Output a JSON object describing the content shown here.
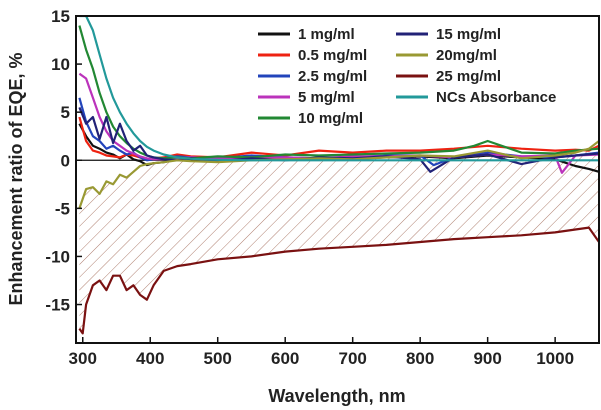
{
  "chart_data": {
    "type": "line",
    "xlabel": "Wavelength, nm",
    "ylabel": "Enhancement ratio of EQE, %",
    "xlim": [
      290,
      1065
    ],
    "ylim": [
      -19,
      15
    ],
    "x_ticks": [
      300,
      400,
      500,
      600,
      700,
      800,
      900,
      1000
    ],
    "y_ticks": [
      -15,
      -10,
      -5,
      0,
      5,
      10,
      15
    ],
    "grid": false,
    "legend_position": "top-right, two columns",
    "zero_line": true,
    "hatched_region": "between the 20mg/ml curve and the 25 mg/ml curve",
    "series": [
      {
        "name": "1 mg/ml",
        "color": "#111111",
        "x": [
          295,
          305,
          315,
          325,
          335,
          345,
          355,
          365,
          375,
          385,
          395,
          405,
          420,
          440,
          460,
          500,
          550,
          600,
          650,
          700,
          750,
          800,
          850,
          900,
          950,
          1000,
          1030,
          1050,
          1065
        ],
        "y": [
          3.8,
          2.5,
          1.5,
          1.2,
          0.8,
          0.6,
          0.2,
          0.6,
          0.1,
          -0.1,
          -0.5,
          -0.3,
          -0.2,
          0.1,
          0.0,
          0.2,
          0.1,
          0.3,
          0.1,
          0.2,
          0.3,
          0.4,
          0.2,
          0.5,
          0.3,
          0.1,
          -0.6,
          -0.9,
          -1.2
        ]
      },
      {
        "name": "0.5 mg/ml",
        "color": "#ee2211",
        "x": [
          295,
          305,
          315,
          325,
          335,
          345,
          355,
          365,
          375,
          385,
          395,
          405,
          420,
          440,
          460,
          500,
          550,
          600,
          650,
          700,
          750,
          800,
          850,
          900,
          950,
          1000,
          1030,
          1050,
          1065
        ],
        "y": [
          4.5,
          2.0,
          1.0,
          0.8,
          0.5,
          0.4,
          0.3,
          0.6,
          0.5,
          0.3,
          0.1,
          0.2,
          0.3,
          0.6,
          0.4,
          0.3,
          0.8,
          0.5,
          1.0,
          0.8,
          1.0,
          1.0,
          1.2,
          1.5,
          1.2,
          1.0,
          1.1,
          1.0,
          1.5
        ]
      },
      {
        "name": "2.5 mg/ml",
        "color": "#2244bb",
        "x": [
          295,
          305,
          315,
          325,
          335,
          345,
          355,
          365,
          375,
          385,
          395,
          405,
          420,
          440,
          460,
          500,
          550,
          600,
          650,
          700,
          750,
          800,
          820,
          850,
          900,
          950,
          1000,
          1030,
          1065
        ],
        "y": [
          6.5,
          4.0,
          2.5,
          2.0,
          1.2,
          1.5,
          1.0,
          0.6,
          0.8,
          0.3,
          0.0,
          0.1,
          0.2,
          0.4,
          0.3,
          0.2,
          0.5,
          0.3,
          0.2,
          0.3,
          0.5,
          0.5,
          -0.5,
          0.3,
          0.8,
          0.4,
          0.3,
          0.5,
          0.8
        ]
      },
      {
        "name": "5 mg/ml",
        "color": "#bb33bb",
        "x": [
          295,
          305,
          315,
          325,
          335,
          345,
          355,
          365,
          375,
          385,
          395,
          405,
          420,
          440,
          460,
          500,
          550,
          600,
          650,
          700,
          750,
          800,
          850,
          900,
          950,
          1000,
          1010,
          1030,
          1065
        ],
        "y": [
          9.0,
          8.5,
          6.5,
          4.5,
          3.0,
          2.0,
          1.5,
          1.0,
          0.7,
          0.4,
          0.2,
          0.1,
          0.1,
          0.2,
          0.3,
          0.2,
          0.3,
          0.3,
          0.2,
          0.4,
          0.4,
          0.5,
          0.3,
          0.6,
          0.4,
          0.5,
          -1.3,
          0.5,
          0.6
        ]
      },
      {
        "name": "10 mg/ml",
        "color": "#228833",
        "x": [
          295,
          305,
          315,
          325,
          335,
          345,
          355,
          365,
          375,
          385,
          395,
          405,
          420,
          440,
          460,
          500,
          550,
          600,
          650,
          700,
          750,
          800,
          850,
          880,
          900,
          950,
          1000,
          1030,
          1065
        ],
        "y": [
          14.0,
          11.5,
          9.5,
          7.0,
          5.0,
          3.5,
          2.5,
          1.8,
          1.2,
          0.8,
          0.5,
          0.3,
          0.2,
          0.3,
          0.2,
          0.4,
          0.3,
          0.6,
          0.5,
          0.6,
          0.7,
          0.8,
          1.0,
          1.5,
          2.0,
          0.8,
          0.7,
          1.0,
          1.2
        ]
      },
      {
        "name": "15 mg/ml",
        "color": "#222277",
        "x": [
          295,
          305,
          315,
          325,
          335,
          345,
          355,
          365,
          375,
          385,
          395,
          405,
          420,
          440,
          460,
          500,
          550,
          600,
          650,
          700,
          750,
          800,
          815,
          850,
          900,
          950,
          1000,
          1030,
          1065
        ],
        "y": [
          5.5,
          3.8,
          4.5,
          2.2,
          4.5,
          1.8,
          3.8,
          2.0,
          1.0,
          1.5,
          0.5,
          0.3,
          0.1,
          0.0,
          0.2,
          -0.1,
          0.2,
          0.0,
          0.3,
          0.2,
          0.4,
          0.1,
          -1.2,
          0.3,
          0.6,
          -0.4,
          0.3,
          0.5,
          0.7
        ]
      },
      {
        "name": "20mg/ml",
        "color": "#999933",
        "x": [
          295,
          305,
          315,
          325,
          335,
          345,
          355,
          365,
          375,
          385,
          395,
          405,
          420,
          440,
          460,
          500,
          550,
          600,
          650,
          700,
          750,
          800,
          850,
          900,
          950,
          1000,
          1030,
          1050,
          1065
        ],
        "y": [
          -5.0,
          -3.0,
          -2.8,
          -3.5,
          -2.2,
          -2.5,
          -1.5,
          -1.8,
          -1.2,
          -0.6,
          -0.4,
          -0.3,
          -0.2,
          0.0,
          -0.1,
          -0.2,
          0.0,
          0.1,
          0.2,
          0.1,
          0.3,
          0.5,
          0.4,
          1.0,
          0.2,
          0.5,
          0.8,
          1.2,
          2.0
        ]
      },
      {
        "name": "25 mg/ml",
        "color": "#7a1111",
        "x": [
          295,
          300,
          305,
          315,
          325,
          335,
          345,
          355,
          365,
          375,
          385,
          395,
          405,
          420,
          440,
          460,
          500,
          550,
          600,
          650,
          700,
          750,
          800,
          850,
          900,
          950,
          1000,
          1030,
          1050,
          1065
        ],
        "y": [
          -17.5,
          -18.0,
          -15.0,
          -13.0,
          -12.5,
          -13.5,
          -12.0,
          -12.0,
          -13.5,
          -13.0,
          -14.0,
          -14.5,
          -13.0,
          -11.5,
          -11.0,
          -10.8,
          -10.3,
          -10.0,
          -9.5,
          -9.2,
          -9.0,
          -8.8,
          -8.5,
          -8.2,
          -8.0,
          -7.8,
          -7.5,
          -7.2,
          -7.0,
          -8.5
        ]
      },
      {
        "name": "NCs Absorbance",
        "color": "#22999a",
        "x": [
          295,
          305,
          315,
          325,
          335,
          345,
          355,
          365,
          375,
          385,
          395,
          405,
          420,
          440,
          460,
          500,
          550,
          600,
          650,
          700,
          750,
          800,
          850,
          900,
          950,
          1000,
          1065
        ],
        "y": [
          15.0,
          15.0,
          13.5,
          11.0,
          8.5,
          6.5,
          5.0,
          3.8,
          2.8,
          2.0,
          1.4,
          1.0,
          0.6,
          0.3,
          0.15,
          0.05,
          0.0,
          0.0,
          0.0,
          0.0,
          0.0,
          0.0,
          0.0,
          0.0,
          0.0,
          0.0,
          0.0
        ]
      }
    ]
  }
}
